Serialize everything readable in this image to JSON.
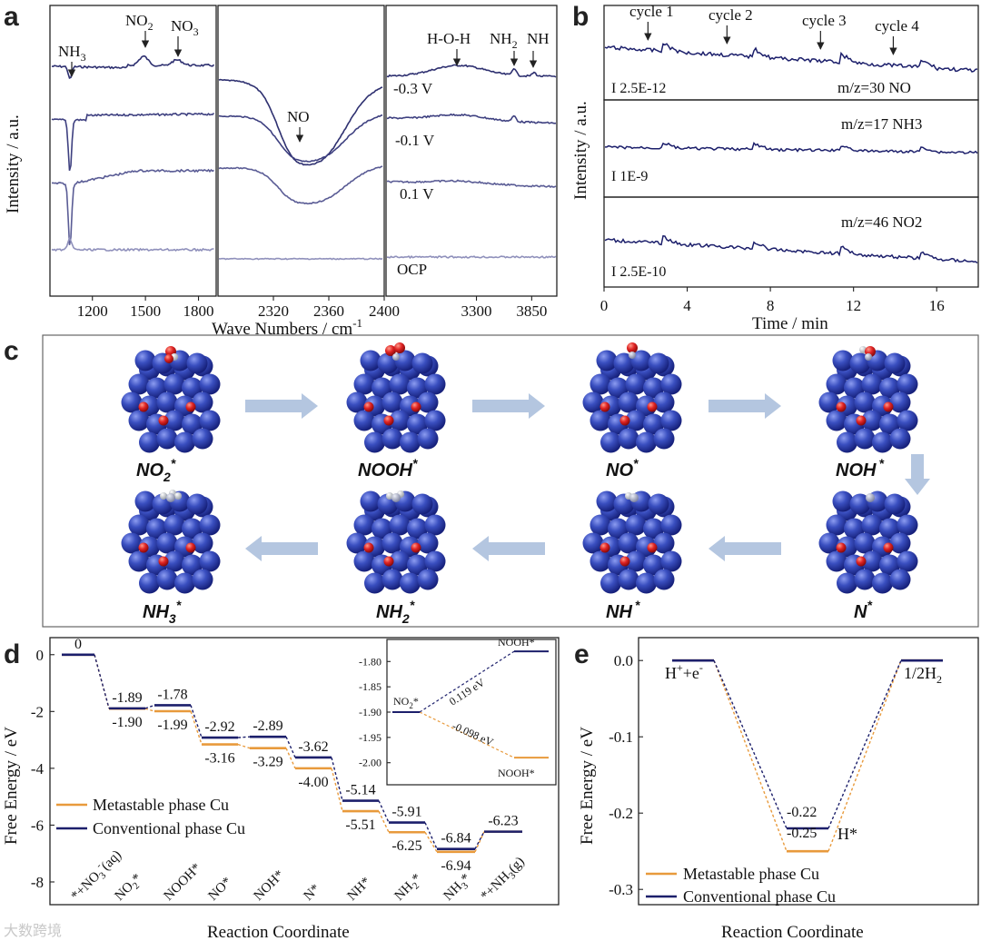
{
  "colors": {
    "conventional": "#1c1f6b",
    "metastable": "#e89a3c",
    "curve_a1": "#2e3070",
    "curve_a2": "#3e4080",
    "curve_a3": "#5a5c95",
    "curve_ocp": "#8f90bb",
    "arrow": "#b4c6e0",
    "atom_cu": "#2c3fa6",
    "atom_o": "#d42020"
  },
  "panels": {
    "a": "a",
    "b": "b",
    "c": "c",
    "d": "d",
    "e": "e"
  },
  "watermark": "大数跨境",
  "chart_data": [
    {
      "id": "a",
      "type": "line",
      "ylabel": "Intensity / a.u.",
      "xlabel": "Wave Numbers / cm",
      "xlabel_sup": "-1",
      "sections": [
        {
          "xrange": [
            960,
            1900
          ],
          "ticks": [
            1200,
            1500,
            1800
          ]
        },
        {
          "xrange": [
            2280,
            2400
          ],
          "ticks": [
            2320,
            2360,
            2400
          ]
        },
        {
          "xrange": [
            2400,
            4100
          ],
          "ticks": [
            3300,
            3850
          ]
        }
      ],
      "series": [
        {
          "name": "-0.3 V",
          "label": "-0.3 V"
        },
        {
          "name": "-0.1 V",
          "label": "-0.1 V"
        },
        {
          "name": "0.1 V",
          "label": "0.1 V"
        },
        {
          "name": "OCP",
          "label": "OCP"
        }
      ],
      "annotations": {
        "nh3": "NH",
        "nh3_sub": "3",
        "no2": "NO",
        "no2_sub": "2",
        "no3": "NO",
        "no3_sub": "3",
        "no": "NO",
        "hoh": "H-O-H",
        "nh2": "NH",
        "nh2_sub": "2",
        "nh": "NH"
      }
    },
    {
      "id": "b",
      "type": "line",
      "ylabel": "Intensity / a.u.",
      "xlabel": "Time / min",
      "xlim": [
        0,
        18
      ],
      "xticks": [
        "0",
        "4",
        "8",
        "12",
        "16"
      ],
      "cycles": [
        {
          "label": "cycle 1",
          "t": 2.2
        },
        {
          "label": "cycle 2",
          "t": 6.0
        },
        {
          "label": "cycle 3",
          "t": 10.5
        },
        {
          "label": "cycle 4",
          "t": 14.0
        }
      ],
      "series": [
        {
          "name": "m/z=30  NO",
          "scale": "I  2.5E-12"
        },
        {
          "name": "m/z=17  NH3",
          "scale": "I  1E-9"
        },
        {
          "name": "m/z=46  NO2",
          "scale": "I  2.5E-10"
        }
      ]
    },
    {
      "id": "c",
      "type": "diagram",
      "steps": [
        "NO2*",
        "NOOH*",
        "NO*",
        "NOH*",
        "N*",
        "NH*",
        "NH2*",
        "NH3*"
      ],
      "labels": {
        "no2": "NO",
        "no2_sub": "2",
        "nooh": "NOOH",
        "no": "NO",
        "noh": "NOH",
        "n": "N",
        "nh": "NH",
        "nh2": "NH",
        "nh2_sub": "2",
        "nh3": "NH",
        "nh3_sub": "3",
        "star": "*"
      }
    },
    {
      "id": "d",
      "type": "line",
      "ylabel": "Free Energy / eV",
      "xlabel": "Reaction Coordinate",
      "ylim": [
        -8.8,
        0.6
      ],
      "yticks": [
        "0",
        "-2",
        "-4",
        "-6",
        "-8"
      ],
      "categories": [
        "*+NO3-(aq)",
        "NO2*",
        "NOOH*",
        "NO*",
        "NOH*",
        "N*",
        "NH*",
        "NH2*",
        "NH3*",
        "*+NH3(g)"
      ],
      "category_labels": {
        "c0": "*+NO",
        "c0_sub": "3",
        "c0_sup": "-",
        "c0_tail": "(aq)",
        "c1": "NO",
        "c1_sub": "2",
        "c1_star": "*",
        "c2": "NOOH*",
        "c3": "NO*",
        "c4": "NOH*",
        "c5": "N*",
        "c6": "NH*",
        "c7": "NH",
        "c7_sub": "2",
        "c7_star": "*",
        "c8": "NH",
        "c8_sub": "3",
        "c8_star": "*",
        "c9": "*+NH",
        "c9_sub": "3",
        "c9_tail": "(g)"
      },
      "series": [
        {
          "name": "Conventional phase Cu",
          "values": [
            0,
            -1.89,
            -1.78,
            -2.92,
            -2.89,
            -3.62,
            -5.14,
            -5.91,
            -6.84,
            -6.23
          ]
        },
        {
          "name": "Metastable phase Cu",
          "values": [
            0,
            -1.9,
            -1.99,
            -3.16,
            -3.29,
            -4.0,
            -5.51,
            -6.25,
            -6.94,
            -6.23
          ]
        }
      ],
      "value_labels": {
        "conv": [
          "0",
          "-1.89",
          "-1.78",
          "-2.92",
          "-2.89",
          "-3.62",
          "-5.14",
          "-5.91",
          "-6.84",
          "-6.23"
        ],
        "meta": [
          "-1.90",
          "-1.99",
          "-3.16",
          "-3.29",
          "-4.00",
          "-5.51",
          "-6.25",
          "-6.94"
        ]
      },
      "legend": [
        "Metastable phase Cu",
        "Conventional phase Cu"
      ],
      "inset": {
        "ylim": [
          -2.04,
          -1.76
        ],
        "yticks": [
          "-1.80",
          "-1.85",
          "-1.90",
          "-1.95",
          "-2.00"
        ],
        "start_label": "NO",
        "start_sub": "2",
        "start_star": "*",
        "end_label": "NOOH*",
        "conv": {
          "start": -1.9,
          "end": -1.78,
          "delta": "0.119 eV"
        },
        "meta": {
          "start": -1.9,
          "end": -1.99,
          "delta": "-0.098 eV"
        }
      }
    },
    {
      "id": "e",
      "type": "line",
      "ylabel": "Free Energy / eV",
      "xlabel": "Reaction Coordinate",
      "ylim": [
        -0.32,
        0.03
      ],
      "yticks": [
        "0.0",
        "-0.1",
        "-0.2",
        "-0.3"
      ],
      "series": [
        {
          "name": "Conventional phase Cu",
          "values": [
            0,
            -0.22,
            0
          ]
        },
        {
          "name": "Metastable phase Cu",
          "values": [
            0,
            -0.25,
            0
          ]
        }
      ],
      "labels": {
        "start": "H",
        "start_sup1": "+",
        "start_mid": "+e",
        "start_sup2": "-",
        "end": "1/2H",
        "end_sub": "2",
        "mid": "H*",
        "v_conv": "-0.22",
        "v_meta": "-0.25"
      },
      "legend": [
        "Metastable phase Cu",
        "Conventional phase Cu"
      ]
    }
  ]
}
